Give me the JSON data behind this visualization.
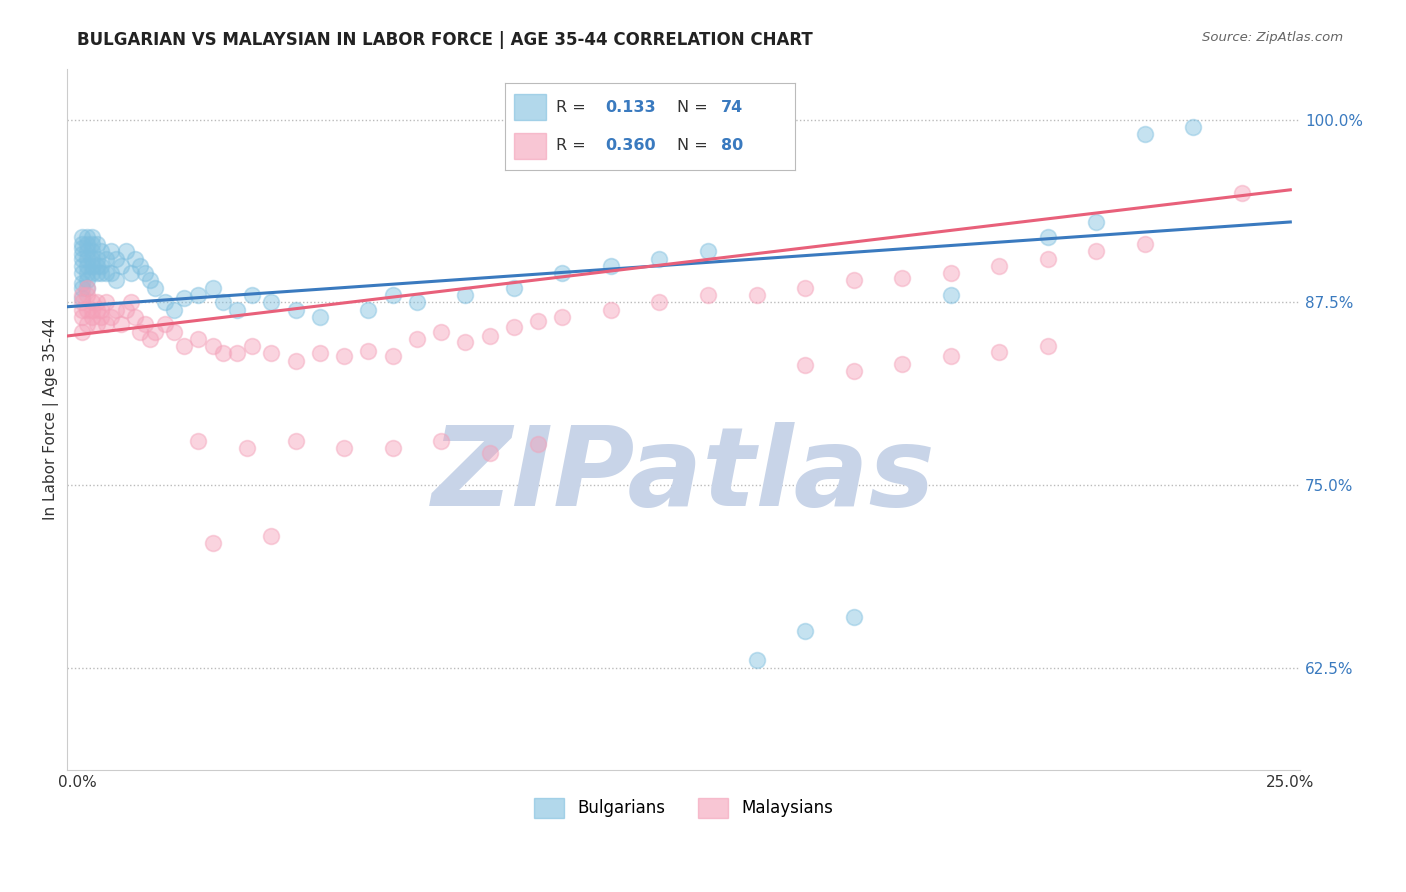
{
  "title": "BULGARIAN VS MALAYSIAN IN LABOR FORCE | AGE 35-44 CORRELATION CHART",
  "source_text": "Source: ZipAtlas.com",
  "ylabel": "In Labor Force | Age 35-44",
  "xlim": [
    -0.002,
    0.252
  ],
  "ylim": [
    0.555,
    1.035
  ],
  "xticks": [
    0.0,
    0.25
  ],
  "xticklabels": [
    "0.0%",
    "25.0%"
  ],
  "yticks": [
    0.625,
    0.75,
    0.875,
    1.0
  ],
  "yticklabels": [
    "62.5%",
    "75.0%",
    "87.5%",
    "100.0%"
  ],
  "watermark": "ZIPatlas",
  "watermark_color": "#c8d4e8",
  "bg_color": "#ffffff",
  "grid_color": "#bbbbbb",
  "blue_color": "#7fbfdf",
  "pink_color": "#f4a0b8",
  "blue_line_color": "#3a7abf",
  "pink_line_color": "#e8607a",
  "legend_R_blue": "0.133",
  "legend_N_blue": "74",
  "legend_R_pink": "0.360",
  "legend_N_pink": "80",
  "blue_line_y0": 0.872,
  "blue_line_y1": 0.93,
  "pink_line_y0": 0.852,
  "pink_line_y1": 0.952,
  "title_fontsize": 12,
  "axis_fontsize": 11,
  "tick_fontsize": 11,
  "legend_value_color": "#3a7abf",
  "bulgarian_x": [
    0.001,
    0.001,
    0.001,
    0.001,
    0.001,
    0.001,
    0.001,
    0.001,
    0.001,
    0.001,
    0.002,
    0.002,
    0.002,
    0.002,
    0.002,
    0.002,
    0.002,
    0.002,
    0.003,
    0.003,
    0.003,
    0.003,
    0.003,
    0.003,
    0.004,
    0.004,
    0.004,
    0.004,
    0.005,
    0.005,
    0.005,
    0.006,
    0.006,
    0.007,
    0.007,
    0.008,
    0.008,
    0.009,
    0.01,
    0.011,
    0.012,
    0.013,
    0.014,
    0.015,
    0.016,
    0.018,
    0.02,
    0.022,
    0.025,
    0.028,
    0.03,
    0.033,
    0.036,
    0.04,
    0.045,
    0.05,
    0.06,
    0.065,
    0.07,
    0.08,
    0.09,
    0.1,
    0.11,
    0.12,
    0.13,
    0.14,
    0.15,
    0.16,
    0.18,
    0.2,
    0.21,
    0.22,
    0.23
  ],
  "bulgarian_y": [
    0.9,
    0.908,
    0.915,
    0.92,
    0.895,
    0.888,
    0.912,
    0.905,
    0.885,
    0.878,
    0.915,
    0.92,
    0.895,
    0.905,
    0.89,
    0.885,
    0.9,
    0.91,
    0.92,
    0.915,
    0.91,
    0.895,
    0.905,
    0.9,
    0.905,
    0.9,
    0.895,
    0.915,
    0.9,
    0.91,
    0.895,
    0.905,
    0.895,
    0.895,
    0.91,
    0.905,
    0.89,
    0.9,
    0.91,
    0.895,
    0.905,
    0.9,
    0.895,
    0.89,
    0.885,
    0.875,
    0.87,
    0.878,
    0.88,
    0.885,
    0.875,
    0.87,
    0.88,
    0.875,
    0.87,
    0.865,
    0.87,
    0.88,
    0.875,
    0.88,
    0.885,
    0.895,
    0.9,
    0.905,
    0.91,
    0.63,
    0.65,
    0.66,
    0.88,
    0.92,
    0.93,
    0.99,
    0.995
  ],
  "malaysian_x": [
    0.001,
    0.001,
    0.001,
    0.001,
    0.001,
    0.002,
    0.002,
    0.002,
    0.002,
    0.003,
    0.003,
    0.003,
    0.004,
    0.004,
    0.004,
    0.005,
    0.005,
    0.006,
    0.006,
    0.007,
    0.008,
    0.009,
    0.01,
    0.011,
    0.012,
    0.013,
    0.014,
    0.015,
    0.016,
    0.018,
    0.02,
    0.022,
    0.025,
    0.028,
    0.03,
    0.033,
    0.036,
    0.04,
    0.045,
    0.05,
    0.055,
    0.06,
    0.065,
    0.07,
    0.075,
    0.08,
    0.085,
    0.09,
    0.095,
    0.1,
    0.11,
    0.12,
    0.13,
    0.14,
    0.15,
    0.16,
    0.17,
    0.18,
    0.19,
    0.2,
    0.21,
    0.22,
    0.025,
    0.035,
    0.045,
    0.055,
    0.065,
    0.075,
    0.085,
    0.095,
    0.15,
    0.16,
    0.17,
    0.18,
    0.19,
    0.2,
    0.028,
    0.04,
    0.24
  ],
  "malaysian_y": [
    0.875,
    0.865,
    0.855,
    0.87,
    0.88,
    0.88,
    0.87,
    0.86,
    0.885,
    0.875,
    0.865,
    0.87,
    0.87,
    0.86,
    0.875,
    0.865,
    0.87,
    0.86,
    0.875,
    0.865,
    0.87,
    0.86,
    0.87,
    0.875,
    0.865,
    0.855,
    0.86,
    0.85,
    0.855,
    0.86,
    0.855,
    0.845,
    0.85,
    0.845,
    0.84,
    0.84,
    0.845,
    0.84,
    0.835,
    0.84,
    0.838,
    0.842,
    0.838,
    0.85,
    0.855,
    0.848,
    0.852,
    0.858,
    0.862,
    0.865,
    0.87,
    0.875,
    0.88,
    0.88,
    0.885,
    0.89,
    0.892,
    0.895,
    0.9,
    0.905,
    0.91,
    0.915,
    0.78,
    0.775,
    0.78,
    0.775,
    0.775,
    0.78,
    0.772,
    0.778,
    0.832,
    0.828,
    0.833,
    0.838,
    0.841,
    0.845,
    0.71,
    0.715,
    0.95
  ]
}
